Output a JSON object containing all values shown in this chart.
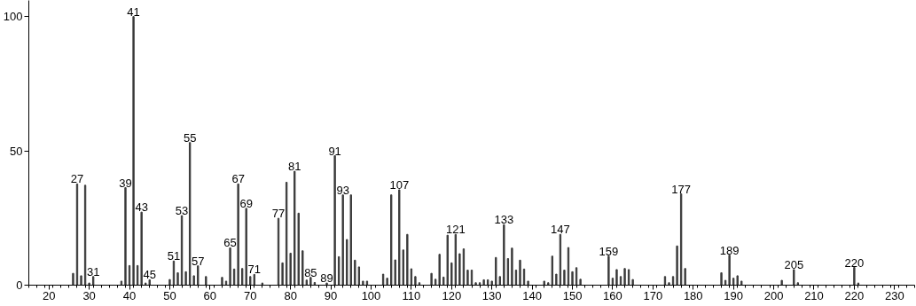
{
  "chart_data": {
    "type": "bar",
    "color": "#3a3a3a",
    "x": [
      26,
      27,
      28,
      29,
      30,
      31,
      38,
      39,
      40,
      41,
      42,
      43,
      44,
      45,
      50,
      51,
      52,
      53,
      54,
      55,
      56,
      57,
      59,
      63,
      64,
      65,
      66,
      67,
      68,
      69,
      70,
      71,
      73,
      77,
      78,
      79,
      80,
      81,
      82,
      83,
      84,
      85,
      86,
      89,
      91,
      92,
      93,
      94,
      95,
      96,
      97,
      98,
      99,
      103,
      104,
      105,
      106,
      107,
      108,
      109,
      110,
      111,
      112,
      115,
      116,
      117,
      118,
      119,
      120,
      121,
      122,
      123,
      124,
      125,
      126,
      127,
      128,
      129,
      130,
      131,
      132,
      133,
      134,
      135,
      136,
      137,
      138,
      139,
      143,
      144,
      145,
      146,
      147,
      148,
      149,
      150,
      151,
      152,
      159,
      160,
      161,
      162,
      163,
      164,
      165,
      173,
      174,
      175,
      176,
      177,
      178,
      187,
      188,
      189,
      190,
      191,
      192,
      202,
      205,
      206,
      220,
      221
    ],
    "values": [
      4.4,
      37.7,
      3.5,
      37.2,
      0.8,
      3.2,
      1.5,
      36.3,
      7.3,
      100,
      7.3,
      27.2,
      0.8,
      2,
      2.1,
      9,
      4.6,
      25.9,
      5,
      53.1,
      3.5,
      7.2,
      3.2,
      2.9,
      1.5,
      13.9,
      6,
      37.7,
      6.2,
      28.6,
      3.2,
      4,
      0.8,
      24.9,
      8.3,
      38.3,
      11.9,
      42.4,
      26.8,
      12.8,
      1.9,
      2.9,
      1,
      0.8,
      48.2,
      10.6,
      33.6,
      17,
      33.6,
      9.3,
      6.8,
      1.5,
      1.5,
      4.1,
      2.6,
      33.6,
      9.4,
      35.5,
      13.1,
      18.9,
      6.1,
      3.2,
      0.9,
      4.4,
      2.2,
      11.5,
      3,
      18.6,
      8.3,
      18.9,
      11.7,
      13.5,
      5.6,
      5.6,
      0.9,
      0.9,
      2,
      2,
      1.5,
      10.3,
      3.2,
      22.5,
      9.9,
      13.8,
      5.6,
      9.3,
      6,
      1.5,
      1.5,
      0.9,
      10.8,
      4.1,
      18.9,
      5.6,
      14,
      5,
      6.5,
      2.2,
      10.8,
      2.6,
      5.8,
      3.2,
      6.2,
      5.8,
      2.1,
      3.2,
      0.9,
      3.2,
      14.6,
      34,
      6.2,
      4.6,
      1.8,
      11.2,
      2.6,
      3.5,
      1.5,
      1.8,
      5.8,
      0.9,
      6.6,
      0.8
    ],
    "annotations": [
      {
        "text": "27",
        "x": 27,
        "y": 37.7
      },
      {
        "text": "31",
        "x": 31,
        "y": 3.2
      },
      {
        "text": "39",
        "x": 39,
        "y": 36.3
      },
      {
        "text": "41",
        "x": 41,
        "y": 100
      },
      {
        "text": "43",
        "x": 43,
        "y": 27.2
      },
      {
        "text": "45",
        "x": 45,
        "y": 2
      },
      {
        "text": "51",
        "x": 51,
        "y": 9
      },
      {
        "text": "53",
        "x": 53,
        "y": 25.9
      },
      {
        "text": "55",
        "x": 55,
        "y": 53.1
      },
      {
        "text": "57",
        "x": 57,
        "y": 7.2
      },
      {
        "text": "65",
        "x": 65,
        "y": 13.9
      },
      {
        "text": "67",
        "x": 67,
        "y": 37.7
      },
      {
        "text": "69",
        "x": 69,
        "y": 28.6
      },
      {
        "text": "71",
        "x": 71,
        "y": 4
      },
      {
        "text": "77",
        "x": 77,
        "y": 24.9
      },
      {
        "text": "81",
        "x": 81,
        "y": 42.4
      },
      {
        "text": "85",
        "x": 85,
        "y": 2.9
      },
      {
        "text": "89",
        "x": 89,
        "y": 0.8
      },
      {
        "text": "91",
        "x": 91,
        "y": 48.2
      },
      {
        "text": "93",
        "x": 93,
        "y": 33.6
      },
      {
        "text": "107",
        "x": 107,
        "y": 35.5
      },
      {
        "text": "121",
        "x": 121,
        "y": 18.9
      },
      {
        "text": "133",
        "x": 133,
        "y": 22.5
      },
      {
        "text": "147",
        "x": 147,
        "y": 18.9
      },
      {
        "text": "159",
        "x": 159,
        "y": 10.8
      },
      {
        "text": "177",
        "x": 177,
        "y": 34
      },
      {
        "text": "189",
        "x": 189,
        "y": 11.2
      },
      {
        "text": "205",
        "x": 205,
        "y": 5.8
      },
      {
        "text": "220",
        "x": 220,
        "y": 6.6
      }
    ],
    "xlim": [
      15,
      235
    ],
    "ylim": [
      0,
      106
    ],
    "xticks": [
      20,
      30,
      40,
      50,
      60,
      70,
      80,
      90,
      100,
      110,
      120,
      130,
      140,
      150,
      160,
      170,
      180,
      190,
      200,
      210,
      220,
      230
    ],
    "yticks": [
      0,
      50,
      100
    ]
  }
}
